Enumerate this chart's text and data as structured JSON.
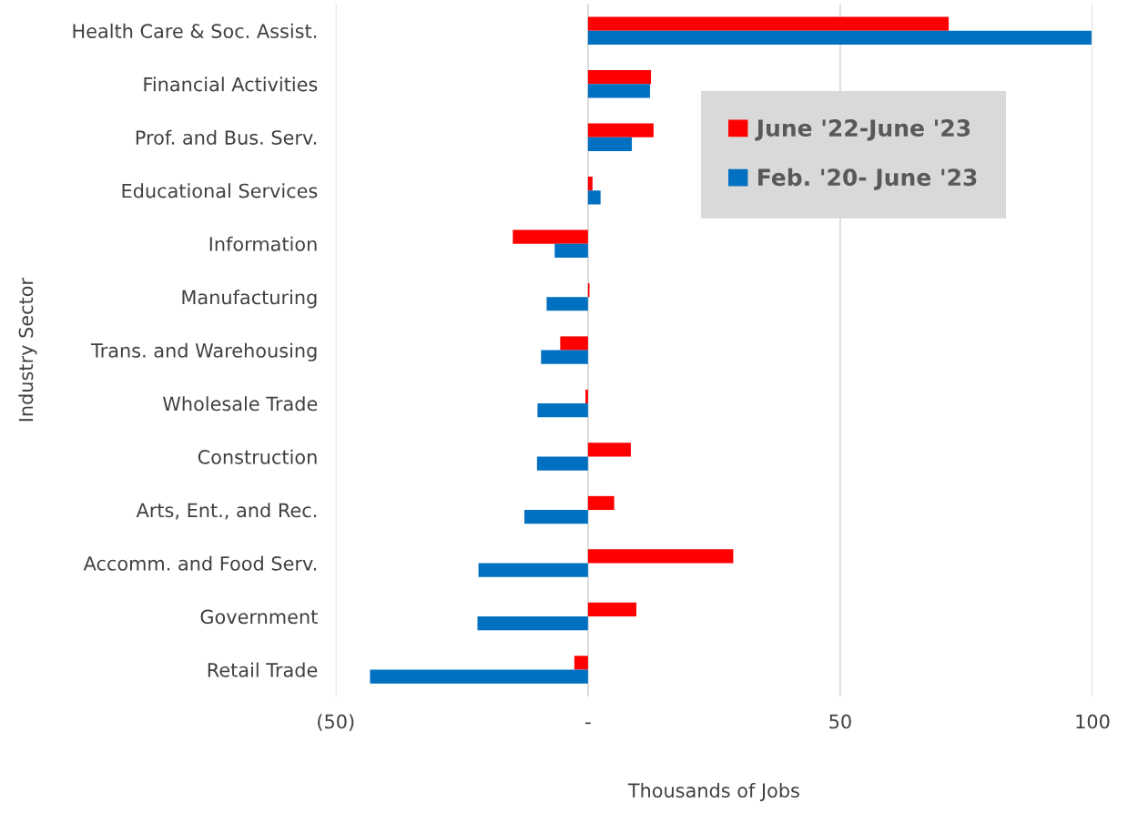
{
  "chart_data": {
    "type": "bar",
    "orientation": "horizontal",
    "xlabel": "Thousands of Jobs",
    "ylabel": "Industry Sector",
    "categories": [
      "Health Care & Soc. Assist.",
      "Financial Activities",
      "Prof. and Bus. Serv.",
      "Educational Services",
      "Information",
      "Manufacturing",
      "Trans. and Warehousing",
      "Wholesale Trade",
      "Construction",
      "Arts, Ent., and Rec.",
      "Accomm. and Food Serv.",
      "Government",
      "Retail Trade"
    ],
    "series": [
      {
        "name": "June '22-June '23",
        "color": "#ff0000",
        "values": [
          71.5,
          12.5,
          13.0,
          0.9,
          -14.9,
          0.3,
          -5.5,
          -0.5,
          8.5,
          5.2,
          28.8,
          9.6,
          -2.7
        ]
      },
      {
        "name": "Feb. '20- June '23",
        "color": "#0070c0",
        "values": [
          99.8,
          12.3,
          8.7,
          2.5,
          -6.6,
          -8.2,
          -9.3,
          -10.0,
          -10.1,
          -12.6,
          -21.7,
          -21.9,
          -43.2
        ]
      }
    ],
    "xlim": [
      -50,
      100
    ],
    "xticks": [
      {
        "value": -50,
        "label": "(50)"
      },
      {
        "value": 0,
        "label": "-"
      },
      50,
      100
    ],
    "grid": "x",
    "legend": "top right"
  }
}
